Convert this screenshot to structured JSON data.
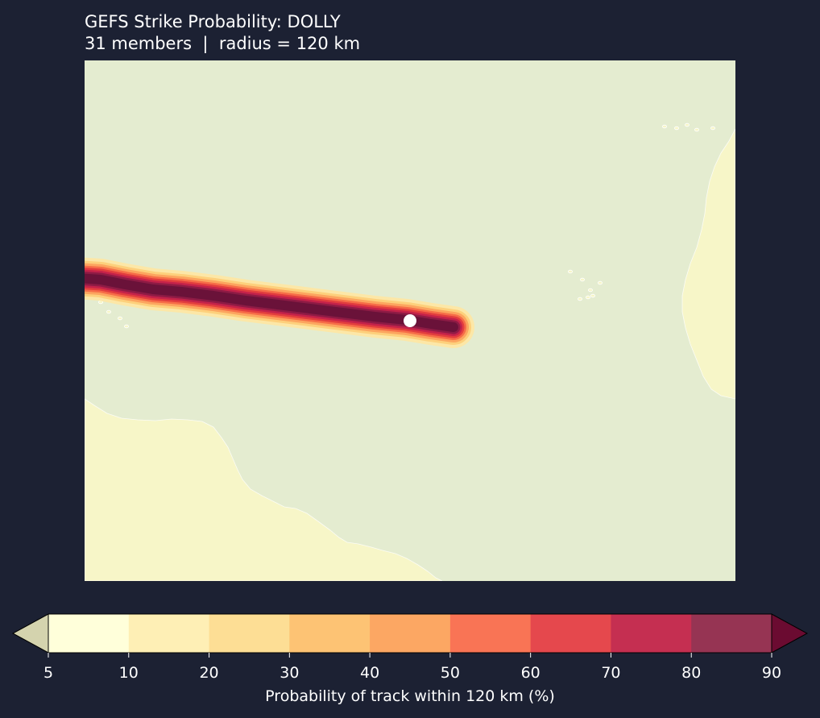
{
  "title": {
    "line1": "GEFS Strike Probability: DOLLY",
    "line2": "31 members  |  radius = 120 km"
  },
  "map": {
    "ocean_color": "#e4ecd0",
    "land_color": "#f7f6c8",
    "coastline_color": "#ffffff",
    "storm_marker_color": "#ffffff",
    "track_direction": "east-to-west",
    "probability_band_colors": [
      "#fee7a2",
      "#fdd07c",
      "#fca55f",
      "#f66d48",
      "#e23d3f",
      "#c4224a",
      "#8e1b45",
      "#6a1239"
    ]
  },
  "colorbar": {
    "label": "Probability of track within 120 km (%)",
    "ticks": [
      "5",
      "10",
      "20",
      "30",
      "40",
      "50",
      "60",
      "70",
      "80",
      "90"
    ],
    "extend": "both",
    "under_color": "#d4d3ae",
    "over_color": "#6b0b31",
    "bins": [
      {
        "from": 5,
        "to": 10,
        "color": "#ffffda"
      },
      {
        "from": 10,
        "to": 20,
        "color": "#feefb5"
      },
      {
        "from": 20,
        "to": 30,
        "color": "#fdde95"
      },
      {
        "from": 30,
        "to": 40,
        "color": "#fdc374"
      },
      {
        "from": 40,
        "to": 50,
        "color": "#fca763"
      },
      {
        "from": 50,
        "to": 60,
        "color": "#f97455"
      },
      {
        "from": 60,
        "to": 70,
        "color": "#e5484d"
      },
      {
        "from": 70,
        "to": 80,
        "color": "#c52f51"
      },
      {
        "from": 80,
        "to": 90,
        "color": "#963453"
      }
    ]
  }
}
